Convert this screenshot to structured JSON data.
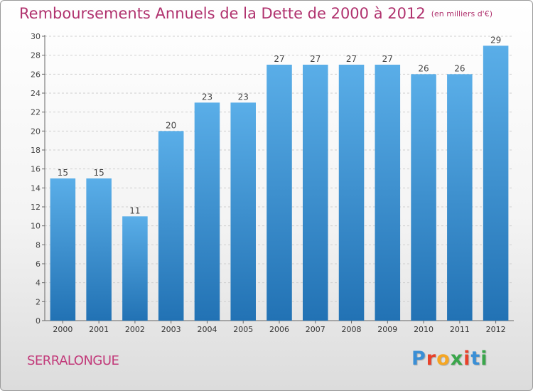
{
  "chart_data": {
    "type": "bar",
    "title": "Remboursements Annuels de la Dette de 2000 à 2012",
    "subtitle": "(en milliers d'€)",
    "categories": [
      "2000",
      "2001",
      "2002",
      "2003",
      "2004",
      "2005",
      "2006",
      "2007",
      "2008",
      "2009",
      "2010",
      "2011",
      "2012"
    ],
    "values": [
      15,
      15,
      11,
      20,
      23,
      23,
      27,
      27,
      27,
      27,
      26,
      26,
      29
    ],
    "ylim": [
      0,
      30
    ],
    "yticks": [
      0,
      2,
      4,
      6,
      8,
      10,
      12,
      14,
      16,
      18,
      20,
      22,
      24,
      26,
      28,
      30
    ],
    "xlabel": "",
    "ylabel": "",
    "grid": true,
    "bar_color_top": "#5aaee8",
    "bar_color_bottom": "#2272b4"
  },
  "footer": {
    "commune": "SERRALONGUE",
    "logo_letters": [
      "P",
      "r",
      "o",
      "x",
      "i",
      "t",
      "i"
    ],
    "logo_colors": [
      "#3a8fd6",
      "#e8412a",
      "#f5a623",
      "#3aa64b",
      "#e8412a",
      "#3a8fd6",
      "#3aa64b"
    ]
  },
  "colors": {
    "title": "#b0326e",
    "commune": "#c23a7a"
  }
}
